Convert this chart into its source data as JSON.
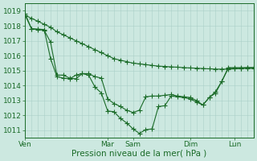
{
  "bg_color": "#cce8e0",
  "grid_color": "#aacfc8",
  "line_color": "#1a6b28",
  "ylim": [
    1010.5,
    1019.5
  ],
  "yticks": [
    1011,
    1012,
    1013,
    1014,
    1015,
    1016,
    1017,
    1018,
    1019
  ],
  "xlabel": "Pression niveau de la mer( hPa )",
  "xtick_labels": [
    "Ven",
    "Mar",
    "Sam",
    "Dim",
    "Lun"
  ],
  "xtick_positions": [
    0,
    13,
    17,
    26,
    33
  ],
  "total_points": 37,
  "line_straight": [
    1018.7,
    1018.5,
    1018.3,
    1018.1,
    1017.9,
    1017.6,
    1017.4,
    1017.2,
    1017.0,
    1016.8,
    1016.6,
    1016.4,
    1016.2,
    1016.0,
    1015.8,
    1015.7,
    1015.6,
    1015.5,
    1015.45,
    1015.4,
    1015.35,
    1015.3,
    1015.28,
    1015.25,
    1015.23,
    1015.2,
    1015.18,
    1015.16,
    1015.14,
    1015.12,
    1015.1,
    1015.1,
    1015.1,
    1015.12,
    1015.15,
    1015.2,
    1015.2
  ],
  "line_mid": [
    1018.7,
    1017.8,
    1017.75,
    1017.7,
    1016.9,
    1014.7,
    1014.7,
    1014.5,
    1014.45,
    1014.8,
    1014.8,
    1014.6,
    1014.5,
    1013.1,
    1012.8,
    1012.6,
    1012.35,
    1012.2,
    1012.35,
    1013.25,
    1013.3,
    1013.3,
    1013.35,
    1013.4,
    1013.3,
    1013.25,
    1013.2,
    1013.0,
    1012.7,
    1013.2,
    1013.6,
    1014.3,
    1015.2,
    1015.2,
    1015.2,
    1015.2,
    1015.2
  ],
  "line_low": [
    1018.8,
    1017.8,
    1017.78,
    1017.75,
    1015.8,
    1014.6,
    1014.5,
    1014.45,
    1014.7,
    1014.8,
    1014.7,
    1013.9,
    1013.5,
    1012.3,
    1012.25,
    1011.8,
    1011.5,
    1011.1,
    1010.8,
    1011.05,
    1011.1,
    1012.6,
    1012.65,
    1013.3,
    1013.25,
    1013.2,
    1013.1,
    1012.9,
    1012.7,
    1013.2,
    1013.5,
    1014.3,
    1015.15,
    1015.15,
    1015.15,
    1015.15,
    1015.15
  ]
}
